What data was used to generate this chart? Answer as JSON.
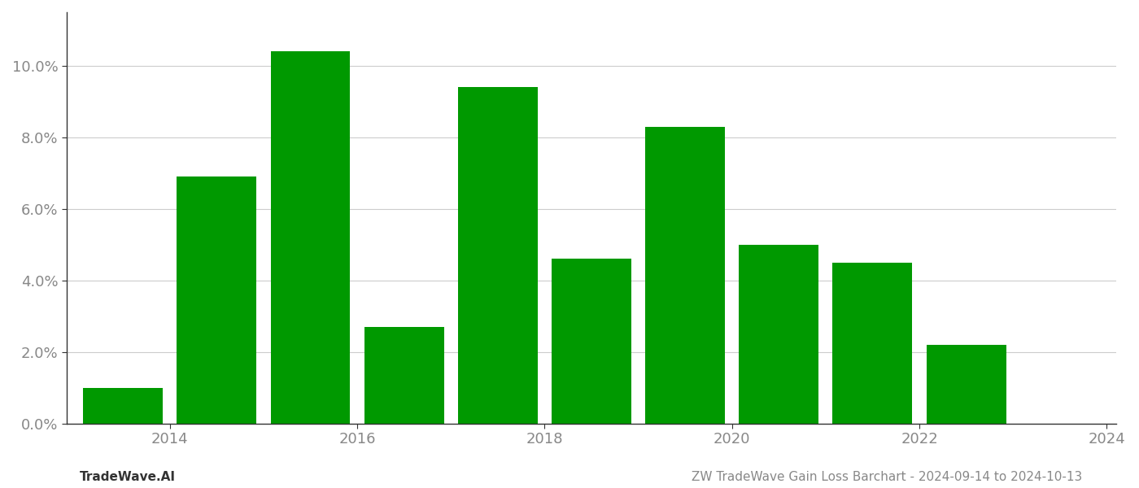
{
  "years": [
    2014,
    2015,
    2016,
    2017,
    2018,
    2019,
    2020,
    2021,
    2022,
    2023,
    2024
  ],
  "values": [
    0.01,
    0.069,
    0.104,
    0.027,
    0.094,
    0.046,
    0.083,
    0.05,
    0.045,
    0.022,
    0.0
  ],
  "bar_color": "#009900",
  "background_color": "#ffffff",
  "ylim": [
    0,
    0.115
  ],
  "yticks": [
    0.0,
    0.02,
    0.04,
    0.06,
    0.08,
    0.1
  ],
  "ylabel": "",
  "xlabel": "",
  "footer_left": "TradeWave.AI",
  "footer_right": "ZW TradeWave Gain Loss Barchart - 2024-09-14 to 2024-10-13",
  "grid_color": "#cccccc",
  "tick_label_color": "#888888",
  "footer_font_size": 11,
  "bar_width": 0.85,
  "xtick_label_years": [
    2014,
    2016,
    2018,
    2020,
    2022,
    2024
  ],
  "xtick_label_positions": [
    0.5,
    2.5,
    4.5,
    6.5,
    8.5,
    10.5
  ]
}
